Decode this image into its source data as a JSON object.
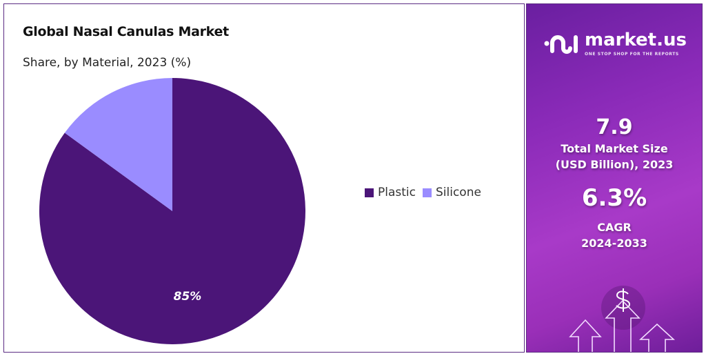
{
  "title": "Global Nasal Canulas Market",
  "subtitle": "Share, by Material, 2023 (%)",
  "chart_data": {
    "type": "pie",
    "title": "Global Nasal Canulas Market",
    "subtitle": "Share, by Material, 2023 (%)",
    "categories": [
      "Plastic",
      "Silicone"
    ],
    "values": [
      85,
      15
    ],
    "colors": [
      "#4b1578",
      "#9a8cff"
    ],
    "data_labels": [
      "85%",
      ""
    ],
    "legend_position": "right"
  },
  "sidebar": {
    "logo_text": "market.us",
    "logo_tagline": "ONE STOP SHOP FOR THE REPORTS",
    "market_size_value": "7.9",
    "market_size_label_1": "Total Market Size",
    "market_size_label_2": "(USD Billion), 2023",
    "cagr_value": "6.3%",
    "cagr_label": "CAGR",
    "cagr_period": "2024-2033",
    "icon": "dollar-arrows-icon"
  }
}
